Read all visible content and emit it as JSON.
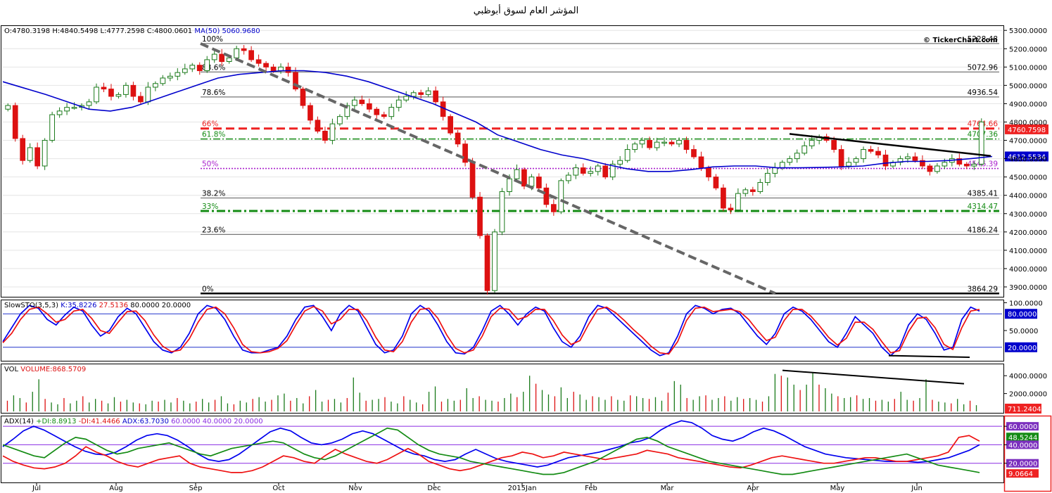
{
  "page": {
    "title": "المؤشر العام لسوق أبوظبي"
  },
  "watermark": "© TickerChart.com",
  "colors": {
    "up": "#1a7a1a",
    "down": "#dd1111",
    "ma": "#0000cc",
    "red": "#ee2222",
    "green": "#138b13",
    "purple": "#8a2be2"
  },
  "chart_data": [
    {
      "type": "candlestick",
      "name": "price",
      "header": {
        "o": "O:4780.3198",
        "h": "H:4840.5498",
        "l": "L:4777.2598",
        "c": "C:4800.0601",
        "ma": "MA(50) 5060.9680"
      },
      "ylim": [
        3850,
        5320
      ],
      "y_ticks": [
        "5300.0000",
        "5200.0000",
        "5100.0000",
        "5000.0000",
        "4900.0000",
        "4800.0000",
        "4700.0000",
        "4600.0000",
        "4500.0000",
        "4400.0000",
        "4300.0000",
        "4200.0000",
        "4100.0000",
        "4000.0000",
        "3900.0000"
      ],
      "x_labels": [
        "Jul",
        "Aug",
        "Sep",
        "Oct",
        "Nov",
        "Dec",
        "2015Jan",
        "Feb",
        "Mar",
        "Apr",
        "May",
        "Jun"
      ],
      "last_price_label": "4760.7598",
      "ma_label": "4612.5534",
      "fib_levels": [
        {
          "pct": "100%",
          "value": "5228.48",
          "v": 5228.48,
          "style": "solid-gray"
        },
        {
          "pct": "88.6%",
          "value": "5072.96",
          "v": 5072.96,
          "style": "solid-gray"
        },
        {
          "pct": "78.6%",
          "value": "4936.54",
          "v": 4936.54,
          "style": "solid-gray"
        },
        {
          "pct": "66%",
          "value": "4764.66",
          "v": 4764.66,
          "style": "dash-red"
        },
        {
          "pct": "61.8%",
          "value": "4707.36",
          "v": 4707.36,
          "style": "dashdot-green"
        },
        {
          "pct": "50%",
          "value": "4546.39",
          "v": 4546.39,
          "style": "dot-purple"
        },
        {
          "pct": "38.2%",
          "value": "4385.41",
          "v": 4385.41,
          "style": "solid-gray"
        },
        {
          "pct": "33%",
          "value": "4314.47",
          "v": 4314.47,
          "style": "dashdot-green-thick"
        },
        {
          "pct": "23.6%",
          "value": "4186.24",
          "v": 4186.24,
          "style": "solid-gray"
        },
        {
          "pct": "0%",
          "value": "3864.29",
          "v": 3864.29,
          "style": "solid-black"
        }
      ],
      "candles": [
        4890,
        4710,
        4590,
        4660,
        4560,
        4700,
        4840,
        4860,
        4880,
        4880,
        4890,
        4910,
        4990,
        4980,
        4940,
        4950,
        5000,
        4940,
        4910,
        4990,
        5010,
        5040,
        5050,
        5070,
        5090,
        5110,
        5080,
        5140,
        5170,
        5130,
        5150,
        5200,
        5190,
        5140,
        5120,
        5100,
        5080,
        5100,
        5070,
        4980,
        4890,
        4810,
        4750,
        4700,
        4790,
        4830,
        4890,
        4920,
        4900,
        4870,
        4840,
        4830,
        4880,
        4920,
        4940,
        4960,
        4950,
        4970,
        4910,
        4830,
        4740,
        4680,
        4580,
        4390,
        4180,
        3880,
        4200,
        4420,
        4490,
        4540,
        4450,
        4500,
        4440,
        4350,
        4310,
        4480,
        4510,
        4550,
        4520,
        4530,
        4560,
        4500,
        4570,
        4590,
        4650,
        4680,
        4700,
        4660,
        4690,
        4690,
        4680,
        4700,
        4650,
        4610,
        4550,
        4500,
        4440,
        4330,
        4320,
        4410,
        4430,
        4420,
        4470,
        4520,
        4550,
        4580,
        4600,
        4630,
        4670,
        4700,
        4720,
        4700,
        4650,
        4560,
        4580,
        4600,
        4650,
        4640,
        4620,
        4560,
        4580,
        4600,
        4610,
        4590,
        4560,
        4530,
        4560,
        4580,
        4600,
        4570,
        4560,
        4570,
        4800
      ],
      "ma50": [
        5020,
        4985,
        4950,
        4910,
        4870,
        4860,
        4880,
        4920,
        4960,
        5000,
        5040,
        5060,
        5070,
        5080,
        5080,
        5070,
        5050,
        5020,
        4980,
        4940,
        4900,
        4850,
        4800,
        4730,
        4690,
        4650,
        4620,
        4600,
        4570,
        4545,
        4530,
        4530,
        4540,
        4555,
        4560,
        4560,
        4550,
        4550,
        4552,
        4555,
        4560,
        4575,
        4585,
        4585,
        4590,
        4600,
        4612
      ]
    },
    {
      "type": "line",
      "name": "SlowSTO",
      "header": {
        "label": "SlowSTO(3,5,3)",
        "k": "K:35.8226",
        "d": "27.5136",
        "hi": "80.0000",
        "lo": "20.0000"
      },
      "ylim": [
        -3,
        103
      ],
      "y_ticks": [
        "100.0000",
        "50.0000"
      ],
      "k_label": "80.0000",
      "d_label": "20.0000",
      "series": [
        {
          "values": [
            30,
            55,
            80,
            95,
            90,
            70,
            60,
            78,
            92,
            85,
            60,
            40,
            50,
            75,
            90,
            80,
            55,
            30,
            15,
            10,
            20,
            45,
            80,
            95,
            90,
            70,
            40,
            15,
            10,
            10,
            15,
            20,
            40,
            70,
            92,
            95,
            75,
            50,
            80,
            95,
            85,
            55,
            25,
            10,
            15,
            40,
            80,
            95,
            85,
            60,
            30,
            10,
            8,
            20,
            50,
            85,
            95,
            80,
            60,
            80,
            92,
            85,
            55,
            30,
            20,
            40,
            75,
            95,
            90,
            75,
            60,
            45,
            30,
            15,
            5,
            10,
            40,
            80,
            95,
            90,
            80,
            88,
            90,
            80,
            60,
            40,
            25,
            45,
            80,
            92,
            85,
            70,
            50,
            30,
            20,
            45,
            75,
            60,
            45,
            20,
            5,
            20,
            60,
            80,
            70,
            45,
            15,
            20,
            70,
            92,
            85
          ]
        },
        {
          "values": [
            28,
            45,
            70,
            88,
            92,
            80,
            65,
            70,
            85,
            88,
            72,
            50,
            45,
            65,
            84,
            85,
            68,
            42,
            22,
            12,
            15,
            35,
            65,
            88,
            92,
            80,
            55,
            25,
            12,
            10,
            12,
            18,
            32,
            60,
            85,
            93,
            85,
            62,
            70,
            88,
            88,
            68,
            38,
            15,
            12,
            30,
            65,
            88,
            90,
            72,
            42,
            18,
            10,
            15,
            40,
            75,
            90,
            88,
            70,
            75,
            88,
            88,
            68,
            42,
            25,
            32,
            62,
            88,
            92,
            82,
            68,
            52,
            38,
            22,
            10,
            8,
            30,
            68,
            90,
            92,
            84,
            86,
            88,
            84,
            70,
            50,
            32,
            38,
            68,
            88,
            88,
            76,
            58,
            38,
            24,
            36,
            65,
            65,
            52,
            30,
            10,
            14,
            48,
            72,
            74,
            55,
            25,
            16,
            55,
            85,
            88
          ]
        }
      ]
    },
    {
      "type": "bar",
      "name": "VOL",
      "header": {
        "label": "VOL",
        "value": "VOLUME:868.5709"
      },
      "ylim": [
        0,
        5200
      ],
      "y_ticks": [
        "4000.0000",
        "2000.0000"
      ],
      "last_label": "711.2404",
      "values": [
        1200,
        1800,
        1500,
        1000,
        2200,
        3600,
        1400,
        1000,
        800,
        1500,
        900,
        1200,
        1700,
        1000,
        1400,
        1200,
        900,
        1600,
        1100,
        1300,
        1000,
        900,
        800,
        1200,
        1100,
        1300,
        1000,
        1500,
        1200,
        900,
        1100,
        1400,
        1000,
        1300,
        1700,
        900,
        800,
        1200,
        1000,
        1400,
        1600,
        1100,
        1300,
        1800,
        2000,
        1200,
        1500,
        900,
        1700,
        2400,
        1100,
        1300,
        1400,
        1000,
        1500,
        3800,
        2100,
        1200,
        1300,
        1400,
        1600,
        1100,
        900,
        1700,
        1300,
        1000,
        800,
        2200,
        2800,
        1100,
        1400,
        1200,
        1300,
        2600,
        1500,
        1700,
        1300,
        1200,
        1100,
        1500,
        2000,
        1600,
        2200,
        4000,
        3100,
        2400,
        1900,
        1700,
        2700,
        1500,
        2200,
        1900,
        1300,
        1700,
        1600,
        1300,
        1700,
        1300,
        1200,
        1800,
        1700,
        1500,
        1400,
        1600,
        1200,
        2100,
        3400,
        3000,
        1500,
        1300,
        1700,
        1800,
        1300,
        1500,
        1700,
        1200,
        1600,
        1400,
        1500,
        1300,
        1100,
        1700,
        4200,
        4000,
        3800,
        3000,
        2400,
        3000,
        4300,
        3000,
        2600,
        2000,
        1700,
        1500,
        1600,
        1800,
        1400,
        1500,
        1200,
        1300,
        1100,
        1400,
        2200,
        1300,
        1200,
        1500,
        3600,
        1300,
        1100,
        1000,
        900,
        1400,
        800,
        1200,
        700
      ],
      "trend": [
        4600,
        3100
      ]
    },
    {
      "type": "line",
      "name": "ADX",
      "header": {
        "label": "ADX(14)",
        "pdi": "+DI:8.8913",
        "mdi": "-DI:41.4466",
        "adx": "ADX:63.7030",
        "l60": "60.0000",
        "l40": "40.0000",
        "l20": "20.0000"
      },
      "ylim": [
        0,
        70
      ],
      "y_ticks": [
        "60.0000",
        "40.0000",
        "20.0000"
      ],
      "labels": {
        "l60": "60.0000",
        "pdi": "48.5244",
        "l40": "40.0000",
        "l20": "20.0000",
        "mdi": "9.0664"
      },
      "series": [
        {
          "values": [
            38,
            46,
            55,
            60,
            56,
            50,
            44,
            38,
            33,
            30,
            29,
            32,
            38,
            45,
            50,
            52,
            50,
            45,
            38,
            30,
            24,
            22,
            24,
            30,
            38,
            46,
            54,
            58,
            55,
            48,
            42,
            40,
            42,
            46,
            52,
            55,
            52,
            46,
            40,
            34,
            30,
            28,
            24,
            22,
            24,
            30,
            35,
            30,
            25,
            22,
            20,
            18,
            16,
            18,
            22,
            26,
            28,
            30,
            32,
            35,
            38,
            42,
            44,
            48,
            56,
            62,
            66,
            64,
            58,
            50,
            46,
            44,
            48,
            54,
            58,
            55,
            50,
            44,
            38,
            34,
            30,
            28,
            26,
            25,
            24,
            23,
            22,
            22,
            22,
            21,
            22,
            24,
            26,
            30,
            34,
            40
          ]
        },
        {
          "values": [
            28,
            22,
            18,
            15,
            14,
            16,
            20,
            28,
            38,
            32,
            28,
            22,
            18,
            16,
            20,
            24,
            26,
            28,
            20,
            16,
            14,
            12,
            10,
            10,
            12,
            16,
            22,
            28,
            26,
            22,
            20,
            28,
            35,
            30,
            26,
            22,
            20,
            24,
            30,
            36,
            30,
            22,
            18,
            14,
            12,
            14,
            18,
            22,
            26,
            28,
            32,
            30,
            26,
            28,
            32,
            30,
            28,
            26,
            24,
            26,
            28,
            30,
            34,
            32,
            30,
            26,
            24,
            22,
            20,
            18,
            16,
            15,
            18,
            22,
            26,
            28,
            26,
            24,
            22,
            20,
            20,
            22,
            24,
            26,
            26,
            24,
            22,
            22,
            24,
            26,
            28,
            32,
            48,
            50,
            44
          ]
        },
        {
          "values": [
            40,
            36,
            32,
            28,
            26,
            34,
            42,
            48,
            46,
            40,
            34,
            30,
            32,
            36,
            38,
            40,
            42,
            38,
            34,
            30,
            28,
            32,
            36,
            38,
            40,
            42,
            44,
            42,
            36,
            30,
            26,
            24,
            28,
            34,
            40,
            46,
            52,
            58,
            56,
            48,
            40,
            34,
            30,
            28,
            26,
            22,
            20,
            18,
            16,
            14,
            12,
            10,
            8,
            8,
            10,
            14,
            18,
            22,
            28,
            34,
            40,
            46,
            48,
            44,
            38,
            34,
            30,
            26,
            22,
            20,
            18,
            16,
            14,
            12,
            10,
            8,
            8,
            10,
            12,
            14,
            16,
            18,
            20,
            22,
            24,
            26,
            28,
            30,
            26,
            22,
            18,
            16,
            14,
            12,
            10
          ]
        }
      ]
    }
  ]
}
